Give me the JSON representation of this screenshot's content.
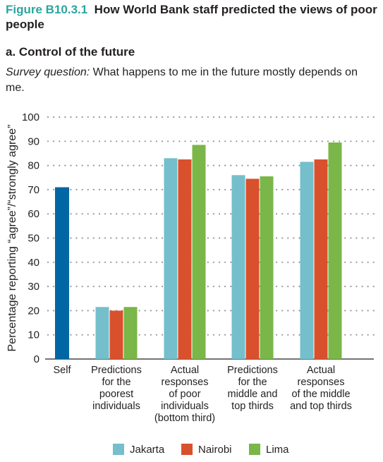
{
  "figure": {
    "number": "Figure B10.3.1",
    "title": "How World Bank staff predicted the views of poor people",
    "panel": "a. Control of the future",
    "survey_lead": "Survey question:",
    "survey_text": "What happens to me in the future mostly depends on me."
  },
  "colors": {
    "self": "#0066a4",
    "jakarta": "#74bfcb",
    "nairobi": "#d9502d",
    "lima": "#7ab648"
  },
  "chart_data": {
    "type": "bar",
    "ylabel": "Percentage reporting “agree”/“strongly agree”",
    "ylim": [
      0,
      100
    ],
    "yticks": [
      "0",
      "10",
      "20",
      "30",
      "40",
      "50",
      "60",
      "70",
      "80",
      "90",
      "100"
    ],
    "grid": "dotted horizontal",
    "legend_position": "bottom",
    "categories": [
      [
        "Self"
      ],
      [
        "Predictions",
        "for the",
        "poorest",
        "individuals"
      ],
      [
        "Actual",
        "responses",
        "of poor",
        "individuals",
        "(bottom third)"
      ],
      [
        "Predictions",
        "for the",
        "middle and",
        "top thirds"
      ],
      [
        "Actual",
        "responses",
        "of the middle",
        "and top thirds"
      ]
    ],
    "self_value": 71,
    "series": [
      {
        "name": "Jakarta",
        "values": [
          null,
          21.5,
          83,
          76,
          81.5
        ]
      },
      {
        "name": "Nairobi",
        "values": [
          null,
          20,
          82.5,
          74.5,
          82.5
        ]
      },
      {
        "name": "Lima",
        "values": [
          null,
          21.5,
          88.5,
          75.5,
          89.5
        ]
      }
    ]
  }
}
